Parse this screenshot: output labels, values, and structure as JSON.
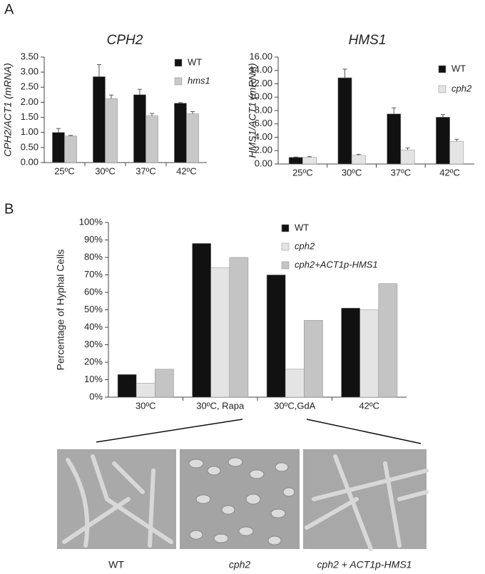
{
  "panel_labels": [
    "A",
    "B"
  ],
  "chart_data": [
    {
      "type": "bar",
      "title": "CPH2",
      "y_label": "CPH2/ACT1 (mRNA)",
      "categories": [
        "25ºC",
        "30ºC",
        "37ºC",
        "42ºC"
      ],
      "series": [
        {
          "name": "WT",
          "color": "#111111",
          "values": [
            1.0,
            2.85,
            2.25,
            1.97
          ],
          "errors": [
            0.13,
            0.4,
            0.18,
            0.02
          ]
        },
        {
          "name": "hms1",
          "color": "#c8c8c8",
          "values": [
            0.88,
            2.12,
            1.55,
            1.62
          ],
          "errors": [
            0.02,
            0.12,
            0.08,
            0.07
          ]
        }
      ],
      "ylim": [
        0,
        3.5
      ],
      "yticks": [
        {
          "value": 0,
          "label": "0.00"
        },
        {
          "value": 0.5,
          "label": "0.50"
        },
        {
          "value": 1,
          "label": "1.00"
        },
        {
          "value": 1.5,
          "label": "1.50"
        },
        {
          "value": 2,
          "label": "2.00"
        },
        {
          "value": 2.5,
          "label": "2.50"
        },
        {
          "value": 3,
          "label": "3.00"
        },
        {
          "value": 3.5,
          "label": "3.50"
        }
      ],
      "legend": "upper right"
    },
    {
      "type": "bar",
      "title": "HMS1",
      "y_label": "HMS1/ACT1 (mRNA)",
      "categories": [
        "25ºC",
        "30ºC",
        "37ºC",
        "42ºC"
      ],
      "series": [
        {
          "name": "WT",
          "color": "#111111",
          "values": [
            1.0,
            12.9,
            7.5,
            7.0
          ],
          "errors": [
            0.05,
            1.3,
            0.9,
            0.4
          ]
        },
        {
          "name": "cph2",
          "color": "#e4e4e4",
          "values": [
            1.0,
            1.3,
            2.1,
            3.4
          ],
          "errors": [
            0.1,
            0.15,
            0.3,
            0.3
          ]
        }
      ],
      "ylim": [
        0,
        16
      ],
      "yticks": [
        {
          "value": 0,
          "label": "0.00"
        },
        {
          "value": 2,
          "label": "2.00"
        },
        {
          "value": 4,
          "label": "4.00"
        },
        {
          "value": 6,
          "label": "6.00"
        },
        {
          "value": 8,
          "label": "8.00"
        },
        {
          "value": 10,
          "label": "10.00"
        },
        {
          "value": 12,
          "label": "12.00"
        },
        {
          "value": 14,
          "label": "14.00"
        },
        {
          "value": 16,
          "label": "16.00"
        }
      ],
      "legend": "upper right"
    },
    {
      "type": "bar",
      "y_label": "Percentage of Hyphal Cells",
      "categories": [
        "30ºC",
        "30ºC, Rapa",
        "30ºC,GdA",
        "42ºC"
      ],
      "series": [
        {
          "name": "WT",
          "color": "#111111",
          "values": [
            13,
            88,
            70,
            51
          ]
        },
        {
          "name": "cph2",
          "color": "#e4e4e4",
          "values": [
            8,
            74,
            16,
            50
          ]
        },
        {
          "name": "cph2+ACT1p-HMS1",
          "color": "#c4c4c4",
          "values": [
            16,
            80,
            44,
            65
          ]
        }
      ],
      "ylim": [
        0,
        100
      ],
      "yticks": [
        {
          "value": 0,
          "label": "0%"
        },
        {
          "value": 10,
          "label": "10%"
        },
        {
          "value": 20,
          "label": "20%"
        },
        {
          "value": 30,
          "label": "30%"
        },
        {
          "value": 40,
          "label": "40%"
        },
        {
          "value": 50,
          "label": "50%"
        },
        {
          "value": 60,
          "label": "60%"
        },
        {
          "value": 70,
          "label": "70%"
        },
        {
          "value": 80,
          "label": "80%"
        },
        {
          "value": 90,
          "label": "90%"
        },
        {
          "value": 100,
          "label": "100%"
        }
      ],
      "legend": "upper right"
    }
  ],
  "images": [
    {
      "caption": "WT"
    },
    {
      "caption": "cph2"
    },
    {
      "caption": "cph2 + ACT1p-HMS1"
    }
  ]
}
